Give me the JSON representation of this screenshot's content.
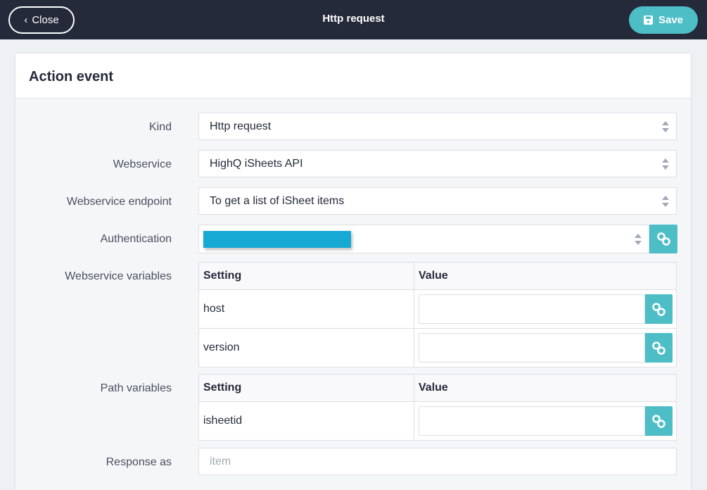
{
  "header": {
    "close_label": "Close",
    "title": "Http request",
    "save_label": "Save"
  },
  "card": {
    "title": "Action event"
  },
  "fields": {
    "kind": {
      "label": "Kind",
      "value": "Http request"
    },
    "webservice": {
      "label": "Webservice",
      "value": "HighQ iSheets API"
    },
    "endpoint": {
      "label": "Webservice endpoint",
      "value": "To get a list of iSheet items"
    },
    "authentication": {
      "label": "Authentication",
      "redaction_color": "#16a9d3"
    },
    "webservice_variables": {
      "label": "Webservice variables",
      "col_setting": "Setting",
      "col_value": "Value",
      "rows": [
        {
          "setting": "host",
          "value": ""
        },
        {
          "setting": "version",
          "value": ""
        }
      ]
    },
    "path_variables": {
      "label": "Path variables",
      "col_setting": "Setting",
      "col_value": "Value",
      "rows": [
        {
          "setting": "isheetid",
          "value": ""
        }
      ]
    },
    "response_as": {
      "label": "Response as",
      "placeholder": "item"
    }
  },
  "colors": {
    "topbar": "#252a3a",
    "accent": "#4dbdc6"
  }
}
